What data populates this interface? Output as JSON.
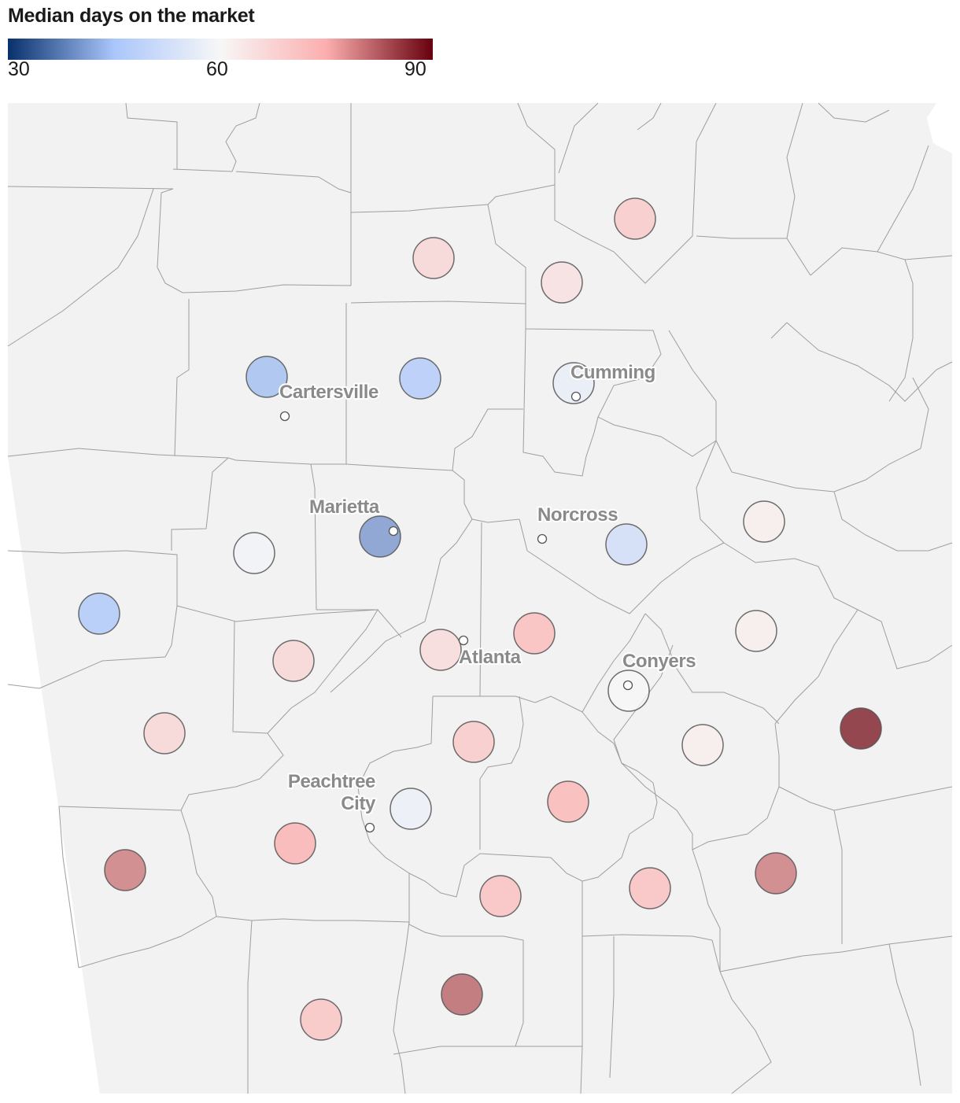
{
  "title": "Median days on the market",
  "legend": {
    "min_label": "30",
    "mid_label": "60",
    "max_label": "90",
    "domain": [
      30,
      60,
      90
    ],
    "colors": [
      "#08306b",
      "#aac6fb",
      "#f7f7f7",
      "#fcaeae",
      "#67000d"
    ]
  },
  "map_style": {
    "land_color": "#f2f2f2",
    "border_color": "#9e9e9e",
    "marker_outline": "#555555"
  },
  "cities": [
    {
      "name": "Cartersville",
      "label_lines": [
        "Cartersville"
      ]
    },
    {
      "name": "Cumming",
      "label_lines": [
        "Cumming"
      ]
    },
    {
      "name": "Marietta",
      "label_lines": [
        "Marietta"
      ]
    },
    {
      "name": "Norcross",
      "label_lines": [
        "Norcross"
      ]
    },
    {
      "name": "Atlanta",
      "label_lines": [
        "Atlanta"
      ]
    },
    {
      "name": "Conyers",
      "label_lines": [
        "Conyers"
      ]
    },
    {
      "name": "Peachtree City",
      "label_lines": [
        "Peachtree",
        "City"
      ]
    }
  ],
  "counties": [
    {
      "id": "north-center",
      "days": 70
    },
    {
      "id": "north-west",
      "days": 67
    },
    {
      "id": "north-east",
      "days": 65
    },
    {
      "id": "bartow",
      "days": 44
    },
    {
      "id": "cherokee",
      "days": 46
    },
    {
      "id": "forsyth",
      "days": 57
    },
    {
      "id": "paulding",
      "days": 59
    },
    {
      "id": "cobb",
      "days": 40
    },
    {
      "id": "gwinnett",
      "days": 52
    },
    {
      "id": "walton-north",
      "days": 62
    },
    {
      "id": "haralson",
      "days": 45
    },
    {
      "id": "douglas",
      "days": 67
    },
    {
      "id": "fulton",
      "days": 66
    },
    {
      "id": "dekalb",
      "days": 73
    },
    {
      "id": "walton",
      "days": 62
    },
    {
      "id": "carroll",
      "days": 67
    },
    {
      "id": "rockdale",
      "days": 60
    },
    {
      "id": "clayton",
      "days": 70
    },
    {
      "id": "newton",
      "days": 62
    },
    {
      "id": "morgan",
      "days": 88
    },
    {
      "id": "fayette",
      "days": 58
    },
    {
      "id": "henry",
      "days": 74
    },
    {
      "id": "coweta",
      "days": 75
    },
    {
      "id": "heard",
      "days": 80
    },
    {
      "id": "spalding",
      "days": 72
    },
    {
      "id": "butts",
      "days": 72
    },
    {
      "id": "jasper",
      "days": 80
    },
    {
      "id": "lamar",
      "days": 82
    },
    {
      "id": "meriwether",
      "days": 71
    }
  ]
}
